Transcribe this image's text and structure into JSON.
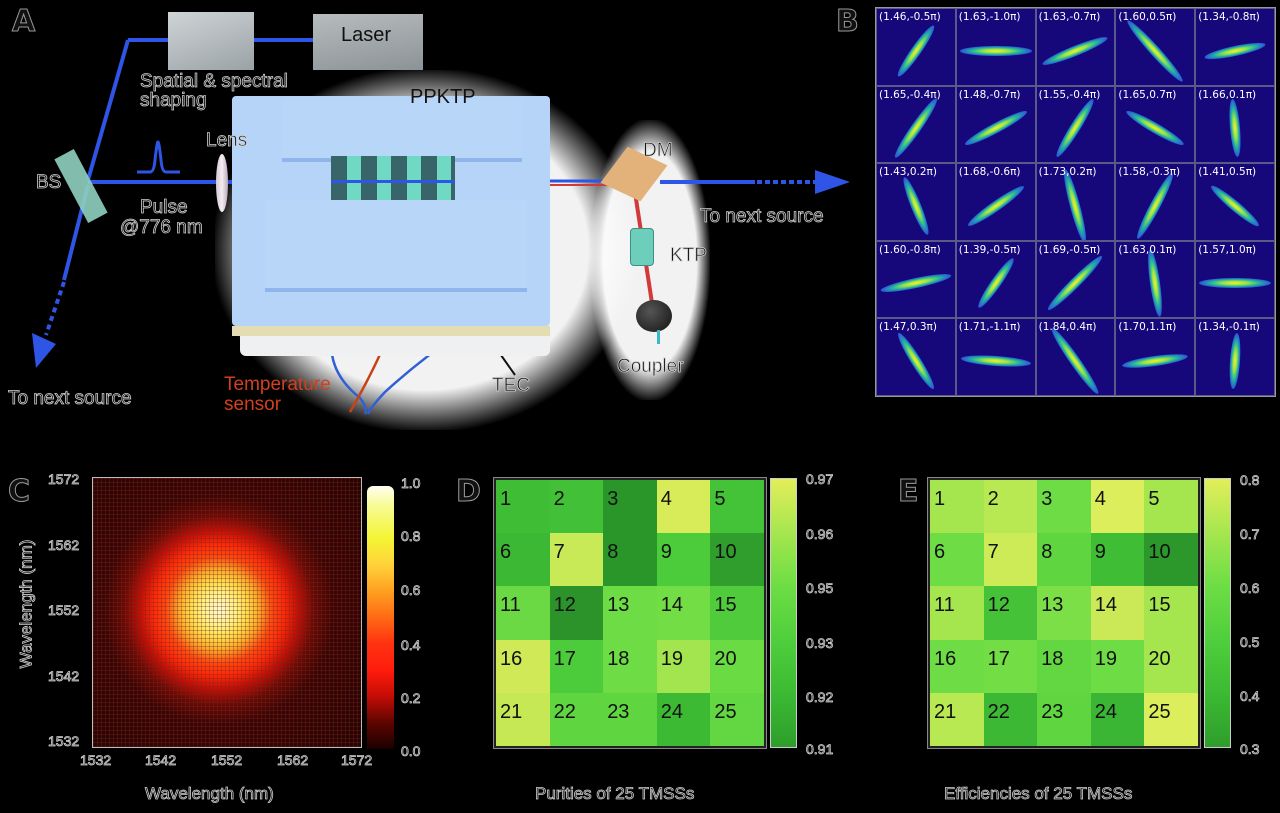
{
  "panel_a": {
    "letter": "A",
    "labels": {
      "laser": "Laser",
      "shaping": "Spatial & spectral shaping",
      "shaping_line1": "Spatial & spectral",
      "shaping_line2": "shaping",
      "lens": "Lens",
      "bs": "BS",
      "pulse_line1": "Pulse",
      "pulse_line2": "@776 nm",
      "ppktp": "PPKTP",
      "dm": "DM",
      "ktp": "KTP",
      "coupler": "Coupler",
      "tec": "TEC",
      "temp_line1": "Temperature",
      "temp_line2": "sensor",
      "to_next_right": "To next source",
      "to_next_left": "To next source"
    },
    "colors": {
      "beam_blue": "#2f55e6",
      "beam_red": "#d23a3a",
      "device": "#b5d4f7",
      "temp_sensor_text": "#d2401e"
    }
  },
  "panel_b": {
    "letter": "B",
    "cells": [
      {
        "label": "(1.46,-0.5π)",
        "angle": -55,
        "len": 62
      },
      {
        "label": "(1.63,-1.0π)",
        "angle": 0,
        "len": 72
      },
      {
        "label": "(1.63,-0.7π)",
        "angle": -22,
        "len": 70
      },
      {
        "label": "(1.60,0.5π)",
        "angle": 48,
        "len": 82
      },
      {
        "label": "(1.34,-0.8π)",
        "angle": -12,
        "len": 62
      },
      {
        "label": "(1.65,-0.4π)",
        "angle": -55,
        "len": 72
      },
      {
        "label": "(1.48,-0.7π)",
        "angle": -28,
        "len": 70
      },
      {
        "label": "(1.55,-0.4π)",
        "angle": -58,
        "len": 68
      },
      {
        "label": "(1.65,0.7π)",
        "angle": 30,
        "len": 66
      },
      {
        "label": "(1.66,0.1π)",
        "angle": 85,
        "len": 58
      },
      {
        "label": "(1.43,0.2π)",
        "angle": 68,
        "len": 62
      },
      {
        "label": "(1.68,-0.6π)",
        "angle": -35,
        "len": 68
      },
      {
        "label": "(1.73,0.2π)",
        "angle": 75,
        "len": 76
      },
      {
        "label": "(1.58,-0.3π)",
        "angle": -62,
        "len": 74
      },
      {
        "label": "(1.41,0.5π)",
        "angle": 40,
        "len": 62
      },
      {
        "label": "(1.60,-0.8π)",
        "angle": -12,
        "len": 72
      },
      {
        "label": "(1.39,-0.5π)",
        "angle": -55,
        "len": 60
      },
      {
        "label": "(1.69,-0.5π)",
        "angle": -45,
        "len": 76
      },
      {
        "label": "(1.63,0.1π)",
        "angle": 82,
        "len": 68
      },
      {
        "label": "(1.57,1.0π)",
        "angle": 0,
        "len": 72
      },
      {
        "label": "(1.47,0.3π)",
        "angle": 58,
        "len": 66
      },
      {
        "label": "(1.71,-1.1π)",
        "angle": 4,
        "len": 70
      },
      {
        "label": "(1.84,0.4π)",
        "angle": 55,
        "len": 80
      },
      {
        "label": "(1.70,1.1π)",
        "angle": -8,
        "len": 66
      },
      {
        "label": "(1.34,-0.1π)",
        "angle": -86,
        "len": 56
      }
    ]
  },
  "panel_c": {
    "letter": "C",
    "xlabel": "Wavelength (nm)",
    "ylabel": "Wavelength (nm)",
    "xticks": [
      "1532",
      "1542",
      "1552",
      "1562",
      "1572"
    ],
    "yticks": [
      "1572",
      "1562",
      "1552",
      "1542",
      "1532"
    ],
    "cbar_ticks": [
      "1.0",
      "0.8",
      "0.6",
      "0.4",
      "0.2",
      "0.0"
    ]
  },
  "panel_d": {
    "letter": "D",
    "xlabel": "Purities of 25 TMSSs",
    "cbar_ticks": [
      "0.97",
      "0.96",
      "0.95",
      "0.93",
      "0.92",
      "0.91"
    ],
    "cells": [
      "1",
      "2",
      "3",
      "4",
      "5",
      "6",
      "7",
      "8",
      "9",
      "10",
      "11",
      "12",
      "13",
      "14",
      "15",
      "16",
      "17",
      "18",
      "19",
      "20",
      "21",
      "22",
      "23",
      "24",
      "25"
    ],
    "colors": [
      "#3fbd35",
      "#42c037",
      "#2a962a",
      "#d8ec5a",
      "#44c238",
      "#3db834",
      "#c8ea56",
      "#2a962a",
      "#4ccc3b",
      "#2f9e2c",
      "#6ad943",
      "#2b932a",
      "#6ddc45",
      "#72dd45",
      "#4fcb3b",
      "#cfe957",
      "#4ccc3b",
      "#6ddc45",
      "#a3e54e",
      "#6bdb44",
      "#c7e855",
      "#5fd640",
      "#5fd640",
      "#3dba34",
      "#62d742"
    ]
  },
  "panel_e": {
    "letter": "E",
    "xlabel": "Efficiencies of 25 TMSSs",
    "cbar_ticks": [
      "0.8",
      "0.7",
      "0.6",
      "0.5",
      "0.4",
      "0.3"
    ],
    "cells": [
      "1",
      "2",
      "3",
      "4",
      "5",
      "6",
      "7",
      "8",
      "9",
      "10",
      "11",
      "12",
      "13",
      "14",
      "15",
      "16",
      "17",
      "18",
      "19",
      "20",
      "21",
      "22",
      "23",
      "24",
      "25"
    ],
    "colors": [
      "#a5e54e",
      "#b8e852",
      "#6ddc45",
      "#dcee5b",
      "#a5e54e",
      "#6ddc45",
      "#cdea57",
      "#5fd640",
      "#3fbd35",
      "#2c972b",
      "#a5e54e",
      "#45c238",
      "#7ddf47",
      "#cbe956",
      "#a5e54e",
      "#6ddc45",
      "#72dd45",
      "#62d742",
      "#6ddc45",
      "#a5e54e",
      "#b8e852",
      "#3db834",
      "#5fd640",
      "#3ab534",
      "#dcee5b"
    ]
  },
  "chart_data": [
    {
      "type": "heatmap",
      "title": "Joint spectral intensity",
      "xlabel": "Wavelength (nm)",
      "ylabel": "Wavelength (nm)",
      "xlim": [
        1532,
        1572
      ],
      "ylim": [
        1532,
        1572
      ],
      "xticks": [
        1532,
        1542,
        1552,
        1562,
        1572
      ],
      "yticks": [
        1532,
        1542,
        1552,
        1562,
        1572
      ],
      "colorbar": {
        "range": [
          0.0,
          1.0
        ],
        "ticks": [
          0.0,
          0.2,
          0.4,
          0.6,
          0.8,
          1.0
        ],
        "colormap": "hot"
      },
      "peak_center": [
        1551,
        1552
      ]
    },
    {
      "type": "heatmap",
      "title": "Purities of 25 TMSSs",
      "grid": [
        5,
        5
      ],
      "labels": [
        [
          1,
          2,
          3,
          4,
          5
        ],
        [
          6,
          7,
          8,
          9,
          10
        ],
        [
          11,
          12,
          13,
          14,
          15
        ],
        [
          16,
          17,
          18,
          19,
          20
        ],
        [
          21,
          22,
          23,
          24,
          25
        ]
      ],
      "values": [
        [
          0.92,
          0.92,
          0.91,
          0.97,
          0.92
        ],
        [
          0.92,
          0.965,
          0.91,
          0.93,
          0.91
        ],
        [
          0.945,
          0.91,
          0.945,
          0.95,
          0.93
        ],
        [
          0.965,
          0.93,
          0.945,
          0.955,
          0.945
        ],
        [
          0.965,
          0.94,
          0.94,
          0.92,
          0.94
        ]
      ],
      "colorbar": {
        "range": [
          0.91,
          0.97
        ],
        "ticks": [
          "0.91",
          "0.92",
          "0.93",
          "0.95",
          "0.96",
          "0.97"
        ],
        "colormap": "green-yellow"
      }
    },
    {
      "type": "heatmap",
      "title": "Efficiencies of 25 TMSSs",
      "grid": [
        5,
        5
      ],
      "labels": [
        [
          1,
          2,
          3,
          4,
          5
        ],
        [
          6,
          7,
          8,
          9,
          10
        ],
        [
          11,
          12,
          13,
          14,
          15
        ],
        [
          16,
          17,
          18,
          19,
          20
        ],
        [
          21,
          22,
          23,
          24,
          25
        ]
      ],
      "values": [
        [
          0.7,
          0.72,
          0.6,
          0.78,
          0.7
        ],
        [
          0.6,
          0.75,
          0.55,
          0.42,
          0.32
        ],
        [
          0.7,
          0.45,
          0.62,
          0.75,
          0.7
        ],
        [
          0.6,
          0.62,
          0.57,
          0.6,
          0.7
        ],
        [
          0.72,
          0.4,
          0.55,
          0.38,
          0.78
        ]
      ],
      "colorbar": {
        "range": [
          0.3,
          0.8
        ],
        "ticks": [
          "0.3",
          "0.4",
          "0.5",
          "0.6",
          "0.7",
          "0.8"
        ],
        "colormap": "green-yellow"
      }
    },
    {
      "type": "table",
      "title": "Wigner function images (squeezing, angle)",
      "grid": [
        5,
        5
      ],
      "values": [
        [
          "(1.46,-0.5π)",
          "(1.63,-1.0π)",
          "(1.63,-0.7π)",
          "(1.60,0.5π)",
          "(1.34,-0.8π)"
        ],
        [
          "(1.65,-0.4π)",
          "(1.48,-0.7π)",
          "(1.55,-0.4π)",
          "(1.65,0.7π)",
          "(1.66,0.1π)"
        ],
        [
          "(1.43,0.2π)",
          "(1.68,-0.6π)",
          "(1.73,0.2π)",
          "(1.58,-0.3π)",
          "(1.41,0.5π)"
        ],
        [
          "(1.60,-0.8π)",
          "(1.39,-0.5π)",
          "(1.69,-0.5π)",
          "(1.63,0.1π)",
          "(1.57,1.0π)"
        ],
        [
          "(1.47,0.3π)",
          "(1.71,-1.1π)",
          "(1.84,0.4π)",
          "(1.70,1.1π)",
          "(1.34,-0.1π)"
        ]
      ]
    }
  ]
}
